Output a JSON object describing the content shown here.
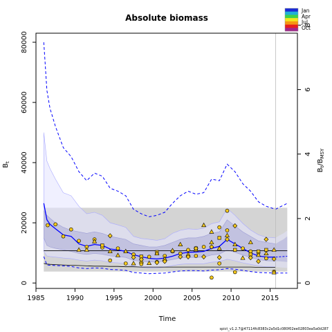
{
  "chart_data": {
    "type": "line",
    "title": "Absolute biomass",
    "xlabel": "Time",
    "ylabel_left": "B",
    "ylabel_left_sub": "t",
    "ylabel_right": "B",
    "ylabel_right_sub": "t",
    "ylabel_right_tail": "/B",
    "ylabel_right_tail_sub": "MSY",
    "footnote": "spict_v1.2.7@47114fc8383c2a5d1c080f02ee02803ea5a0d287",
    "xlim": [
      1985,
      2018.5
    ],
    "ylim": [
      -1800,
      83000
    ],
    "ylim_right": [
      -0.168,
      7.75
    ],
    "bmsy": 10700,
    "x_ticks": [
      1985,
      1990,
      1995,
      2000,
      2005,
      2010,
      2015
    ],
    "y_ticks": [
      0,
      20000,
      40000,
      60000,
      80000
    ],
    "y_tick_labels": [
      "0",
      "20000",
      "40000",
      "60000",
      "80000"
    ],
    "y_right_ticks": [
      0,
      2,
      4,
      6,
      8
    ],
    "forecast_line_x": 2015.7,
    "legend": {
      "labels": [
        "Jan",
        "Apr",
        "Jul",
        "Oct"
      ],
      "colors": [
        "#1b2ad6",
        "#1fb0d8",
        "#3fd24a",
        "#f4e61c",
        "#f59612",
        "#e61d1d",
        "#a2248b"
      ]
    },
    "colors": {
      "estimate": "#0000ff",
      "ci": "#0000ff",
      "band_light": "#e3e3ff",
      "band_dark": "#bcbbdd",
      "msy_band": "#d4d4d4",
      "points_fill": "#f6c91c",
      "forecast": "#5b5bd7"
    },
    "bmsy_band": [
      3800,
      25000
    ],
    "series": {
      "estimate_x": [
        1986,
        1986.4,
        1986.8,
        1987.5,
        1988.5,
        1989.5,
        1990.5,
        1991.5,
        1992.5,
        1993.5,
        1994.5,
        1995.5,
        1996.5,
        1997.5,
        1998.5,
        1999.5,
        2000.5,
        2001.5,
        2002.5,
        2003.5,
        2004.5,
        2005.5,
        2006.5,
        2007.5,
        2008.5,
        2009.5,
        2010.5,
        2011.5,
        2012.5,
        2013.5,
        2014.5,
        2015.7
      ],
      "estimate_y": [
        26500,
        21000,
        19500,
        18000,
        16000,
        15500,
        13000,
        12200,
        12800,
        12500,
        11300,
        11000,
        10500,
        9400,
        8700,
        8200,
        8000,
        8300,
        8900,
        9800,
        10200,
        10300,
        10500,
        11500,
        12200,
        14500,
        13000,
        11500,
        10000,
        9000,
        8600,
        8600
      ],
      "ci_upper_y": [
        80000,
        64000,
        58000,
        52000,
        45000,
        42000,
        37000,
        34000,
        36500,
        35500,
        31500,
        30500,
        29000,
        24500,
        23000,
        22000,
        22500,
        23500,
        26500,
        29000,
        30500,
        29500,
        30000,
        34500,
        34000,
        39500,
        37000,
        33000,
        30500,
        27000,
        25500,
        24500
      ],
      "ci_lower_y": [
        8800,
        6000,
        5900,
        5800,
        5700,
        5500,
        5000,
        4800,
        5000,
        4900,
        4500,
        4400,
        4200,
        3500,
        3300,
        3100,
        3200,
        3300,
        3700,
        4000,
        4100,
        4100,
        4000,
        4300,
        4400,
        4800,
        4600,
        4200,
        3800,
        3500,
        3400,
        3300
      ],
      "band_light_upper": [
        50000,
        40500,
        38000,
        34500,
        30000,
        29000,
        25500,
        23000,
        23500,
        22500,
        20000,
        19300,
        18500,
        15500,
        14800,
        14500,
        14200,
        14700,
        16500,
        17500,
        18000,
        17800,
        18200,
        19700,
        20300,
        24800,
        22500,
        19800,
        17600,
        16000,
        15200,
        15000
      ],
      "band_light_lower": [
        10500,
        9000,
        8800,
        8600,
        8300,
        8100,
        7600,
        7300,
        7600,
        7400,
        6800,
        6700,
        6400,
        5500,
        5200,
        5000,
        5000,
        5300,
        5800,
        6200,
        6400,
        6400,
        6400,
        6900,
        7100,
        7900,
        7400,
        6700,
        6200,
        5700,
        5400,
        5300
      ],
      "band_dark_upper": [
        24000,
        22500,
        21500,
        20000,
        18500,
        17500,
        17000,
        16500,
        17000,
        16500,
        15500,
        15000,
        14500,
        13000,
        12500,
        12000,
        12000,
        12500,
        13500,
        14500,
        15000,
        15000,
        15500,
        16500,
        17000,
        21000,
        19000,
        17000,
        15500,
        14000,
        13500,
        13000
      ],
      "band_dark_lower": [
        15000,
        12500,
        12000,
        11500,
        11000,
        10500,
        9800,
        9500,
        9800,
        9600,
        9000,
        8800,
        8500,
        7500,
        7200,
        7000,
        7000,
        7300,
        7800,
        8300,
        8500,
        8500,
        8600,
        9300,
        9600,
        11000,
        10200,
        9300,
        8500,
        7800,
        7400,
        7300
      ],
      "msy_line_y": [
        6500,
        6300,
        6200,
        6100,
        6000,
        5900,
        5800,
        5700,
        5600,
        5600,
        5500,
        5500,
        5400,
        5400,
        5300,
        5300,
        5300,
        5300,
        5300,
        5300,
        5300,
        5300,
        5300,
        5300,
        5300,
        5300,
        5300,
        5300,
        5300,
        5200,
        5200,
        5200
      ],
      "forecast_x": [
        2015.7,
        2016.2,
        2016.7,
        2017.2
      ],
      "forecast_est": [
        8600,
        8700,
        8800,
        8900
      ],
      "forecast_ci_up": [
        24500,
        25200,
        25800,
        26500
      ],
      "forecast_ci_lo": [
        3300,
        3300,
        3300,
        3300
      ],
      "forecast_band_up": [
        15000,
        15800,
        16500,
        17400
      ],
      "forecast_band_lo": [
        5300,
        5200,
        5100,
        5000
      ],
      "forecast_dark_up": [
        13000,
        13800,
        14500,
        15500
      ],
      "forecast_dark_lo": [
        7300,
        7200,
        7100,
        7000
      ]
    },
    "points_circle": [
      [
        1986.5,
        19200
      ],
      [
        1987.5,
        19500
      ],
      [
        1988.5,
        15500
      ],
      [
        1989.5,
        17800
      ],
      [
        1990.5,
        14000
      ],
      [
        1991.5,
        12000
      ],
      [
        1992.5,
        14500
      ],
      [
        1993.5,
        11800
      ],
      [
        1994.5,
        7500
      ],
      [
        1995.5,
        11500
      ],
      [
        1996.5,
        6500
      ],
      [
        1997.5,
        9500
      ],
      [
        1998.5,
        6300
      ],
      [
        1999.5,
        8700
      ],
      [
        2000.5,
        7000
      ],
      [
        2001.5,
        9000
      ],
      [
        2002.5,
        10500
      ],
      [
        2003.5,
        9800
      ],
      [
        2004.5,
        11000
      ],
      [
        2005.5,
        9000
      ],
      [
        2006.5,
        12000
      ],
      [
        2007.5,
        1800
      ],
      [
        2008.5,
        6500
      ],
      [
        2008.5,
        18500
      ],
      [
        2009.5,
        24000
      ],
      [
        2009.5,
        17500
      ],
      [
        2010.5,
        3600
      ],
      [
        2011.5,
        11500
      ],
      [
        2012.5,
        10500
      ],
      [
        2013.5,
        10000
      ],
      [
        2014.5,
        8200
      ],
      [
        2015.5,
        3800
      ]
    ],
    "points_triangle": [
      [
        1990.5,
        11000
      ],
      [
        1991.5,
        11000
      ],
      [
        1992.5,
        13800
      ],
      [
        1994.5,
        10500
      ],
      [
        1995.5,
        9200
      ],
      [
        1996.5,
        10500
      ],
      [
        1997.5,
        6500
      ],
      [
        1998.5,
        7200
      ],
      [
        1999.5,
        6600
      ],
      [
        2000.5,
        9800
      ],
      [
        2001.5,
        8000
      ],
      [
        2002.5,
        10800
      ],
      [
        2003.5,
        12800
      ],
      [
        2004.5,
        9500
      ],
      [
        2005.5,
        11000
      ],
      [
        2006.5,
        19200
      ],
      [
        2007.5,
        17000
      ],
      [
        2007.5,
        13500
      ],
      [
        2008.5,
        11500
      ],
      [
        2009.5,
        15800
      ],
      [
        2010.5,
        12800
      ],
      [
        2011.5,
        8300
      ],
      [
        2012.5,
        13500
      ],
      [
        2013.5,
        9300
      ],
      [
        2014.5,
        9800
      ],
      [
        2015.5,
        11000
      ],
      [
        2015.5,
        3500
      ]
    ],
    "points_diamond": [
      [
        1994.5,
        15700
      ],
      [
        1997.5,
        8500
      ],
      [
        1998.5,
        7800
      ],
      [
        2000.5,
        6800
      ],
      [
        2001.5,
        7200
      ],
      [
        2003.5,
        8700
      ],
      [
        2004.5,
        8700
      ],
      [
        2005.5,
        11500
      ],
      [
        2006.5,
        8700
      ],
      [
        2007.5,
        12000
      ],
      [
        2008.5,
        8500
      ],
      [
        2009.5,
        14500
      ],
      [
        2010.5,
        19000
      ],
      [
        2012.5,
        8400
      ],
      [
        2013.5,
        7200
      ],
      [
        2014.5,
        14500
      ],
      [
        2015.5,
        8000
      ]
    ],
    "points_square": [
      [
        1993.5,
        12500
      ],
      [
        1998.5,
        8800
      ],
      [
        2000.5,
        10300
      ],
      [
        2005.5,
        11500
      ],
      [
        2008.5,
        15000
      ],
      [
        2010.5,
        11000
      ],
      [
        2012.5,
        9500
      ],
      [
        2013.5,
        10500
      ],
      [
        2014.5,
        11000
      ]
    ]
  }
}
